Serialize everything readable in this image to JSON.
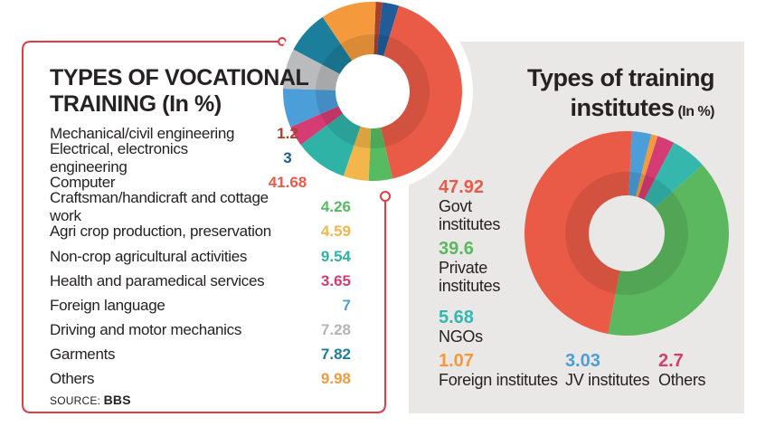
{
  "colors": {
    "page_bg": "#FFFFFF",
    "panel_bg": "#EAE8E6",
    "card_bg": "#FFFFFF",
    "card_border": "#E23B44",
    "text": "#262223"
  },
  "left_card": {
    "title_line1": "TYPES OF VOCATIONAL",
    "title_line2": "TRAINING (In %)",
    "source_label": "SOURCE:",
    "source_value": "BBS",
    "rows": [
      {
        "label": "Mechanical/civil engineering",
        "value": "1.2",
        "color": "#A8402E",
        "shifted": true
      },
      {
        "label": "Electrical, electronics engineering",
        "value": "3",
        "color": "#1F5C99",
        "shifted": true
      },
      {
        "label": "Computer",
        "value": "41.68",
        "color": "#EA5B47",
        "shifted": true
      },
      {
        "label": "Craftsman/handicraft and cottage work",
        "value": "4.26",
        "color": "#57BB61",
        "shifted": false
      },
      {
        "label": "Agri crop production, preservation",
        "value": "4.59",
        "color": "#F2B64A",
        "shifted": false
      },
      {
        "label": "Non-crop agricultural activities",
        "value": "9.54",
        "color": "#2FB3A7",
        "shifted": false
      },
      {
        "label": "Health and paramedical services",
        "value": "3.65",
        "color": "#D53C73",
        "shifted": false
      },
      {
        "label": "Foreign language",
        "value": "7",
        "color": "#4C9ED9",
        "shifted": false
      },
      {
        "label": "Driving and motor mechanics",
        "value": "7.28",
        "color": "#B5B5B5",
        "shifted": false
      },
      {
        "label": "Garments",
        "value": "7.82",
        "color": "#1B7F9B",
        "shifted": false
      },
      {
        "label": "Others",
        "value": "9.98",
        "color": "#F49A3D",
        "shifted": false
      }
    ]
  },
  "right_panel": {
    "title_line1": "Types of training",
    "title_line2": "institutes",
    "title_suffix": "(In %)",
    "legend_left": [
      {
        "value": "47.92",
        "color": "#EA5B47",
        "lines": [
          "Govt",
          "institutes"
        ]
      },
      {
        "value": "39.6",
        "color": "#5CB85F",
        "lines": [
          "Private",
          "institutes"
        ]
      },
      {
        "value": "5.68",
        "color": "#35B7AE",
        "lines": [
          "NGOs"
        ]
      }
    ],
    "legend_bottom": [
      {
        "value": "1.07",
        "color": "#F49A3D",
        "lines": [
          "Foreign institutes"
        ]
      },
      {
        "value": "3.03",
        "color": "#4C9ED9",
        "lines": [
          "JV institutes"
        ]
      },
      {
        "value": "2.7",
        "color": "#D53C73",
        "lines": [
          "Others"
        ]
      }
    ]
  },
  "chart_data": [
    {
      "type": "pie",
      "variant": "donut",
      "title": "TYPES OF VOCATIONAL TRAINING (In %)",
      "start_angle_deg": 2,
      "slices": [
        {
          "label": "Mechanical/civil engineering",
          "value": 1.2,
          "color": "#A8402E"
        },
        {
          "label": "Electrical, electronics engineering",
          "value": 3,
          "color": "#1F5C99"
        },
        {
          "label": "Computer",
          "value": 41.68,
          "color": "#EA5B47"
        },
        {
          "label": "Craftsman/handicraft and cottage work",
          "value": 4.26,
          "color": "#57BB61"
        },
        {
          "label": "Agri crop production, preservation",
          "value": 4.59,
          "color": "#F2B64A"
        },
        {
          "label": "Non-crop agricultural activities",
          "value": 9.54,
          "color": "#2FB3A7"
        },
        {
          "label": "Health and paramedical services",
          "value": 3.65,
          "color": "#D53C73"
        },
        {
          "label": "Foreign language",
          "value": 7,
          "color": "#4C9ED9"
        },
        {
          "label": "Driving and motor mechanics",
          "value": 7.28,
          "color": "#B9BBBD"
        },
        {
          "label": "Garments",
          "value": 7.82,
          "color": "#1B7F9B"
        },
        {
          "label": "Others",
          "value": 9.98,
          "color": "#F49A3D"
        }
      ]
    },
    {
      "type": "pie",
      "variant": "donut",
      "title": "Types of training institutes (In %)",
      "start_angle_deg": 3,
      "slices": [
        {
          "label": "JV institutes",
          "value": 3.03,
          "color": "#4C9ED9"
        },
        {
          "label": "Foreign institutes",
          "value": 1.07,
          "color": "#F49A3D"
        },
        {
          "label": "Others",
          "value": 2.7,
          "color": "#D53C73"
        },
        {
          "label": "NGOs",
          "value": 5.68,
          "color": "#35B7AE"
        },
        {
          "label": "Private institutes",
          "value": 39.6,
          "color": "#5CB85F"
        },
        {
          "label": "Govt institutes",
          "value": 47.92,
          "color": "#EA5B47"
        }
      ]
    }
  ]
}
